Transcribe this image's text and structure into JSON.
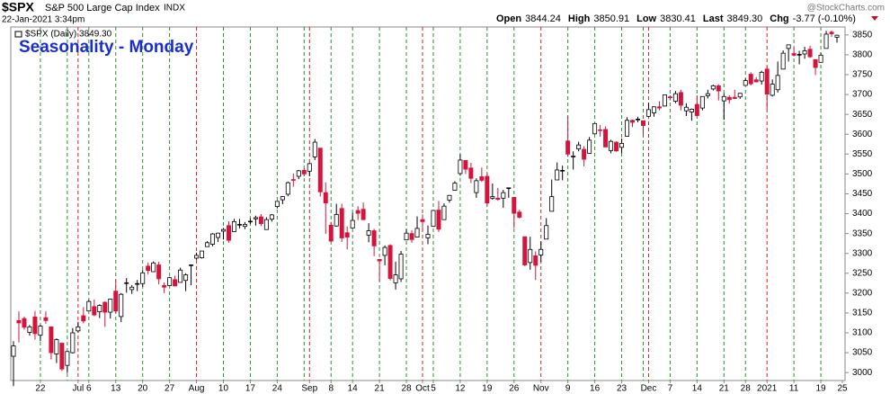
{
  "chart_data": {
    "type": "candlestick",
    "symbol": "$SPX",
    "name": "S&P 500 Large Cap Index",
    "exchange": "INDX",
    "timestamp": "22-Jan-2021 3:34pm",
    "quote": {
      "open_label": "Open",
      "open": "3844.24",
      "high_label": "High",
      "high": "3850.91",
      "low_label": "Low",
      "low": "3830.41",
      "last_label": "Last",
      "last": "3849.30",
      "chg_label": "Chg",
      "chg": "-3.77 (-0.10%)"
    },
    "watermark": "@StockCharts.com",
    "legend": "$SPX (Daily) 3849.30",
    "annotation": "Seasonality - Monday",
    "up_color": "#000000",
    "down_color": "#d4143c",
    "monday_line_color": "#2a8f2a",
    "month_line_color": "#d42020",
    "x": [
      "2020-06-15",
      "2020-06-16",
      "2020-06-17",
      "2020-06-18",
      "2020-06-19",
      "2020-06-22",
      "2020-06-23",
      "2020-06-24",
      "2020-06-25",
      "2020-06-26",
      "2020-06-29",
      "2020-06-30",
      "2020-07-01",
      "2020-07-02",
      "2020-07-06",
      "2020-07-07",
      "2020-07-08",
      "2020-07-09",
      "2020-07-10",
      "2020-07-13",
      "2020-07-14",
      "2020-07-15",
      "2020-07-16",
      "2020-07-17",
      "2020-07-20",
      "2020-07-21",
      "2020-07-22",
      "2020-07-23",
      "2020-07-24",
      "2020-07-27",
      "2020-07-28",
      "2020-07-29",
      "2020-07-30",
      "2020-07-31",
      "2020-08-03",
      "2020-08-04",
      "2020-08-05",
      "2020-08-06",
      "2020-08-07",
      "2020-08-10",
      "2020-08-11",
      "2020-08-12",
      "2020-08-13",
      "2020-08-14",
      "2020-08-17",
      "2020-08-18",
      "2020-08-19",
      "2020-08-20",
      "2020-08-21",
      "2020-08-24",
      "2020-08-25",
      "2020-08-26",
      "2020-08-27",
      "2020-08-28",
      "2020-08-31",
      "2020-09-01",
      "2020-09-02",
      "2020-09-03",
      "2020-09-04",
      "2020-09-08",
      "2020-09-09",
      "2020-09-10",
      "2020-09-11",
      "2020-09-14",
      "2020-09-15",
      "2020-09-16",
      "2020-09-17",
      "2020-09-18",
      "2020-09-21",
      "2020-09-22",
      "2020-09-23",
      "2020-09-24",
      "2020-09-25",
      "2020-09-28",
      "2020-09-29",
      "2020-09-30",
      "2020-10-01",
      "2020-10-02",
      "2020-10-05",
      "2020-10-06",
      "2020-10-07",
      "2020-10-08",
      "2020-10-09",
      "2020-10-12",
      "2020-10-13",
      "2020-10-14",
      "2020-10-15",
      "2020-10-16",
      "2020-10-19",
      "2020-10-20",
      "2020-10-21",
      "2020-10-22",
      "2020-10-23",
      "2020-10-26",
      "2020-10-27",
      "2020-10-28",
      "2020-10-29",
      "2020-10-30",
      "2020-11-02",
      "2020-11-03",
      "2020-11-04",
      "2020-11-05",
      "2020-11-06",
      "2020-11-09",
      "2020-11-10",
      "2020-11-11",
      "2020-11-12",
      "2020-11-13",
      "2020-11-16",
      "2020-11-17",
      "2020-11-18",
      "2020-11-19",
      "2020-11-20",
      "2020-11-23",
      "2020-11-24",
      "2020-11-25",
      "2020-11-27",
      "2020-11-30",
      "2020-12-01",
      "2020-12-02",
      "2020-12-03",
      "2020-12-04",
      "2020-12-07",
      "2020-12-08",
      "2020-12-09",
      "2020-12-10",
      "2020-12-11",
      "2020-12-14",
      "2020-12-15",
      "2020-12-16",
      "2020-12-17",
      "2020-12-18",
      "2020-12-21",
      "2020-12-22",
      "2020-12-23",
      "2020-12-24",
      "2020-12-28",
      "2020-12-29",
      "2020-12-30",
      "2020-12-31",
      "2021-01-04",
      "2021-01-05",
      "2021-01-06",
      "2021-01-07",
      "2021-01-08",
      "2021-01-11",
      "2021-01-12",
      "2021-01-13",
      "2021-01-14",
      "2021-01-15",
      "2021-01-19",
      "2021-01-20",
      "2021-01-21",
      "2021-01-22"
    ],
    "candles": [
      [
        3041,
        3079,
        2966,
        3067
      ],
      [
        3131,
        3154,
        3076,
        3125
      ],
      [
        3136,
        3141,
        3108,
        3114
      ],
      [
        3101,
        3120,
        3093,
        3115
      ],
      [
        3140,
        3155,
        3083,
        3098
      ],
      [
        3094,
        3120,
        3079,
        3117
      ],
      [
        3138,
        3154,
        3123,
        3131
      ],
      [
        3115,
        3115,
        3033,
        3050
      ],
      [
        3047,
        3086,
        3024,
        3083
      ],
      [
        3074,
        3074,
        3004,
        3009
      ],
      [
        3018,
        3054,
        2999,
        3053
      ],
      [
        3050,
        3112,
        3048,
        3100
      ],
      [
        3105,
        3128,
        3101,
        3115
      ],
      [
        3143,
        3165,
        3124,
        3130
      ],
      [
        3155,
        3183,
        3155,
        3179
      ],
      [
        3166,
        3184,
        3142,
        3145
      ],
      [
        3153,
        3172,
        3137,
        3169
      ],
      [
        3177,
        3179,
        3115,
        3152
      ],
      [
        3152,
        3186,
        3136,
        3185
      ],
      [
        3205,
        3235,
        3149,
        3155
      ],
      [
        3141,
        3200,
        3127,
        3197
      ],
      [
        3225,
        3238,
        3201,
        3226
      ],
      [
        3209,
        3220,
        3198,
        3215
      ],
      [
        3224,
        3233,
        3205,
        3224
      ],
      [
        3224,
        3258,
        3216,
        3251
      ],
      [
        3268,
        3277,
        3247,
        3257
      ],
      [
        3254,
        3280,
        3253,
        3276
      ],
      [
        3271,
        3279,
        3222,
        3236
      ],
      [
        3219,
        3227,
        3200,
        3215
      ],
      [
        3219,
        3241,
        3219,
        3239
      ],
      [
        3234,
        3244,
        3217,
        3218
      ],
      [
        3227,
        3264,
        3227,
        3258
      ],
      [
        3232,
        3250,
        3205,
        3246
      ],
      [
        3270,
        3272,
        3220,
        3271
      ],
      [
        3288,
        3302,
        3284,
        3295
      ],
      [
        3289,
        3306,
        3287,
        3306
      ],
      [
        3317,
        3331,
        3317,
        3327
      ],
      [
        3323,
        3351,
        3318,
        3349
      ],
      [
        3340,
        3352,
        3329,
        3351
      ],
      [
        3356,
        3364,
        3335,
        3360
      ],
      [
        3370,
        3381,
        3327,
        3333
      ],
      [
        3355,
        3387,
        3355,
        3380
      ],
      [
        3372,
        3387,
        3363,
        3373
      ],
      [
        3368,
        3379,
        3361,
        3373
      ],
      [
        3380,
        3388,
        3374,
        3381
      ],
      [
        3387,
        3395,
        3370,
        3390
      ],
      [
        3392,
        3399,
        3369,
        3375
      ],
      [
        3360,
        3391,
        3360,
        3385
      ],
      [
        3386,
        3399,
        3380,
        3397
      ],
      [
        3418,
        3432,
        3413,
        3431
      ],
      [
        3435,
        3444,
        3424,
        3443
      ],
      [
        3449,
        3481,
        3444,
        3478
      ],
      [
        3486,
        3501,
        3468,
        3484
      ],
      [
        3494,
        3510,
        3487,
        3508
      ],
      [
        3509,
        3514,
        3494,
        3500
      ],
      [
        3507,
        3528,
        3494,
        3526
      ],
      [
        3543,
        3588,
        3535,
        3580
      ],
      [
        3565,
        3565,
        3443,
        3455
      ],
      [
        3453,
        3479,
        3349,
        3427
      ],
      [
        3371,
        3379,
        3329,
        3331
      ],
      [
        3369,
        3425,
        3367,
        3398
      ],
      [
        3413,
        3425,
        3329,
        3339
      ],
      [
        3352,
        3368,
        3310,
        3341
      ],
      [
        3364,
        3402,
        3364,
        3383
      ],
      [
        3408,
        3419,
        3384,
        3401
      ],
      [
        3411,
        3428,
        3384,
        3385
      ],
      [
        3346,
        3376,
        3328,
        3357
      ],
      [
        3357,
        3362,
        3293,
        3319
      ],
      [
        3285,
        3286,
        3230,
        3281
      ],
      [
        3295,
        3320,
        3270,
        3315
      ],
      [
        3320,
        3323,
        3232,
        3237
      ],
      [
        3226,
        3279,
        3209,
        3246
      ],
      [
        3236,
        3306,
        3228,
        3298
      ],
      [
        3334,
        3361,
        3333,
        3351
      ],
      [
        3350,
        3358,
        3327,
        3335
      ],
      [
        3341,
        3393,
        3340,
        3363
      ],
      [
        3385,
        3398,
        3362,
        3380
      ],
      [
        3339,
        3370,
        3323,
        3348
      ],
      [
        3368,
        3409,
        3367,
        3408
      ],
      [
        3409,
        3432,
        3354,
        3361
      ],
      [
        3385,
        3426,
        3385,
        3419
      ],
      [
        3434,
        3447,
        3428,
        3446
      ],
      [
        3459,
        3482,
        3458,
        3477
      ],
      [
        3501,
        3550,
        3496,
        3535
      ],
      [
        3534,
        3534,
        3500,
        3512
      ],
      [
        3515,
        3528,
        3477,
        3489
      ],
      [
        3453,
        3489,
        3440,
        3483
      ],
      [
        3493,
        3516,
        3480,
        3484
      ],
      [
        3494,
        3502,
        3419,
        3427
      ],
      [
        3439,
        3476,
        3435,
        3443
      ],
      [
        3439,
        3465,
        3433,
        3436
      ],
      [
        3439,
        3460,
        3415,
        3453
      ],
      [
        3464,
        3466,
        3440,
        3465
      ],
      [
        3441,
        3441,
        3364,
        3401
      ],
      [
        3404,
        3410,
        3388,
        3391
      ],
      [
        3342,
        3342,
        3268,
        3271
      ],
      [
        3277,
        3342,
        3259,
        3310
      ],
      [
        3294,
        3305,
        3233,
        3270
      ],
      [
        3296,
        3330,
        3279,
        3310
      ],
      [
        3336,
        3389,
        3336,
        3370
      ],
      [
        3406,
        3486,
        3406,
        3443
      ],
      [
        3485,
        3529,
        3485,
        3510
      ],
      [
        3508,
        3521,
        3484,
        3509
      ],
      [
        3583,
        3646,
        3543,
        3550
      ],
      [
        3543,
        3557,
        3511,
        3545
      ],
      [
        3563,
        3581,
        3557,
        3573
      ],
      [
        3562,
        3570,
        3519,
        3537
      ],
      [
        3552,
        3593,
        3552,
        3585
      ],
      [
        3601,
        3628,
        3601,
        3627
      ],
      [
        3611,
        3623,
        3594,
        3610
      ],
      [
        3612,
        3620,
        3567,
        3568
      ],
      [
        3559,
        3586,
        3552,
        3582
      ],
      [
        3580,
        3582,
        3556,
        3558
      ],
      [
        3567,
        3589,
        3552,
        3577
      ],
      [
        3595,
        3643,
        3595,
        3635
      ],
      [
        3635,
        3637,
        3618,
        3630
      ],
      [
        3638,
        3644,
        3630,
        3638
      ],
      [
        3634,
        3634,
        3594,
        3622
      ],
      [
        3645,
        3679,
        3645,
        3662
      ],
      [
        3654,
        3670,
        3644,
        3669
      ],
      [
        3669,
        3683,
        3660,
        3666
      ],
      [
        3671,
        3699,
        3670,
        3699
      ],
      [
        3694,
        3698,
        3685,
        3692
      ],
      [
        3683,
        3709,
        3678,
        3702
      ],
      [
        3705,
        3712,
        3660,
        3673
      ],
      [
        3659,
        3678,
        3646,
        3668
      ],
      [
        3656,
        3665,
        3634,
        3663
      ],
      [
        3675,
        3698,
        3645,
        3647
      ],
      [
        3666,
        3695,
        3660,
        3695
      ],
      [
        3697,
        3712,
        3690,
        3702
      ],
      [
        3714,
        3725,
        3710,
        3722
      ],
      [
        3722,
        3726,
        3685,
        3709
      ],
      [
        3684,
        3703,
        3636,
        3695
      ],
      [
        3693,
        3698,
        3677,
        3687
      ],
      [
        3693,
        3712,
        3689,
        3690
      ],
      [
        3694,
        3704,
        3689,
        3703
      ],
      [
        3723,
        3740,
        3723,
        3735
      ],
      [
        3751,
        3756,
        3723,
        3727
      ],
      [
        3737,
        3744,
        3730,
        3732
      ],
      [
        3734,
        3760,
        3725,
        3756
      ],
      [
        3764,
        3770,
        3663,
        3701
      ],
      [
        3698,
        3738,
        3695,
        3726
      ],
      [
        3712,
        3783,
        3705,
        3748
      ],
      [
        3764,
        3811,
        3764,
        3804
      ],
      [
        3816,
        3826,
        3783,
        3825
      ],
      [
        3803,
        3818,
        3796,
        3799
      ],
      [
        3801,
        3810,
        3776,
        3801
      ],
      [
        3802,
        3820,
        3790,
        3810
      ],
      [
        3814,
        3823,
        3792,
        3795
      ],
      [
        3788,
        3788,
        3749,
        3768
      ],
      [
        3781,
        3805,
        3780,
        3799
      ],
      [
        3816,
        3860,
        3816,
        3852
      ],
      [
        3857,
        3861,
        3845,
        3853
      ],
      [
        3844.24,
        3850.91,
        3830.41,
        3849.3
      ]
    ],
    "xlim": [
      "2020-06-15",
      "2021-01-25"
    ],
    "xticks": [
      {
        "value": "2020-06-22",
        "label": "22"
      },
      {
        "value": "2020-07-01",
        "label": "Jul"
      },
      {
        "value": "2020-07-06",
        "label": "6"
      },
      {
        "value": "2020-07-13",
        "label": "13"
      },
      {
        "value": "2020-07-20",
        "label": "20"
      },
      {
        "value": "2020-07-27",
        "label": "27"
      },
      {
        "value": "2020-08-03",
        "label": "Aug"
      },
      {
        "value": "2020-08-10",
        "label": "10"
      },
      {
        "value": "2020-08-17",
        "label": "17"
      },
      {
        "value": "2020-08-24",
        "label": "24"
      },
      {
        "value": "2020-09-01",
        "label": "Sep"
      },
      {
        "value": "2020-09-08",
        "label": "8"
      },
      {
        "value": "2020-09-14",
        "label": "14"
      },
      {
        "value": "2020-09-21",
        "label": "21"
      },
      {
        "value": "2020-09-28",
        "label": "28"
      },
      {
        "value": "2020-10-01",
        "label": "Oct"
      },
      {
        "value": "2020-10-05",
        "label": "5"
      },
      {
        "value": "2020-10-12",
        "label": "12"
      },
      {
        "value": "2020-10-19",
        "label": "19"
      },
      {
        "value": "2020-10-26",
        "label": "26"
      },
      {
        "value": "2020-11-02",
        "label": "Nov"
      },
      {
        "value": "2020-11-09",
        "label": "9"
      },
      {
        "value": "2020-11-16",
        "label": "16"
      },
      {
        "value": "2020-11-23",
        "label": "23"
      },
      {
        "value": "2020-12-01",
        "label": "Dec"
      },
      {
        "value": "2020-12-07",
        "label": "7"
      },
      {
        "value": "2020-12-14",
        "label": "14"
      },
      {
        "value": "2020-12-21",
        "label": "21"
      },
      {
        "value": "2020-12-28",
        "label": "28"
      },
      {
        "value": "2021-01-04",
        "label": "2021"
      },
      {
        "value": "2021-01-11",
        "label": "11"
      },
      {
        "value": "2021-01-19",
        "label": "19"
      },
      {
        "value": "2021-01-25",
        "label": "25"
      }
    ],
    "ylim": [
      2980,
      3870
    ],
    "yticks": [
      3000,
      3050,
      3100,
      3150,
      3200,
      3250,
      3300,
      3350,
      3400,
      3450,
      3500,
      3550,
      3600,
      3650,
      3700,
      3750,
      3800,
      3850
    ]
  }
}
